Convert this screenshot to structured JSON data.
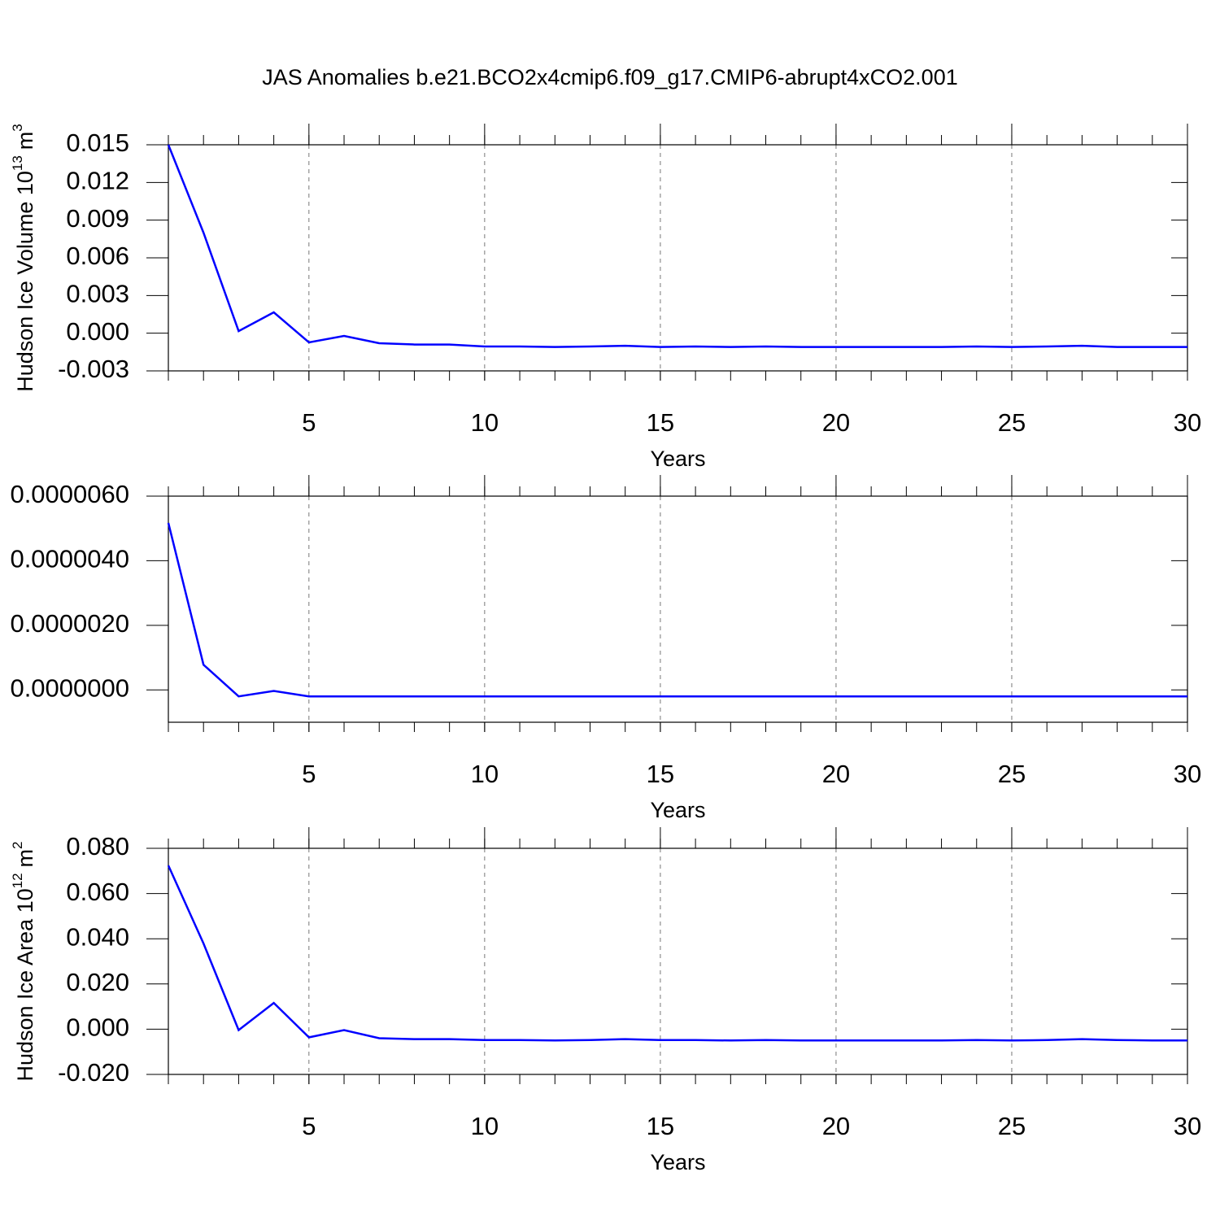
{
  "chart_data": [
    {
      "type": "line",
      "title": "JAS Anomalies b.e21.BCO2x4cmip6.f09_g17.CMIP6-abrupt4xCO2.001",
      "ylabel": "Hudson Ice Volume 10",
      "ylabel_exponent": "13",
      "ylabel_unit": "m",
      "ylabel_unit_exponent": "3",
      "xlabel": "Years",
      "x": [
        1,
        2,
        3,
        4,
        5,
        6,
        7,
        8,
        9,
        10,
        11,
        12,
        13,
        14,
        15,
        16,
        17,
        18,
        19,
        20,
        21,
        22,
        23,
        24,
        25,
        26,
        27,
        28,
        29,
        30
      ],
      "series": [
        {
          "color": "#0000ff",
          "values": [
            0.015,
            0.008,
            0.00017,
            0.00166,
            -0.00073,
            -0.00022,
            -0.0008,
            -0.0009,
            -0.0009,
            -0.00106,
            -0.00106,
            -0.0011,
            -0.00106,
            -0.001,
            -0.0011,
            -0.00106,
            -0.0011,
            -0.00106,
            -0.0011,
            -0.0011,
            -0.0011,
            -0.0011,
            -0.0011,
            -0.00106,
            -0.0011,
            -0.00106,
            -0.001,
            -0.0011,
            -0.0011,
            -0.0011
          ]
        }
      ],
      "xlim": [
        1,
        30
      ],
      "xticks": [
        5,
        10,
        15,
        20,
        25,
        30
      ],
      "ylim": [
        -0.003,
        0.015
      ],
      "yticks": [
        {
          "value": -0.003,
          "label": "-0.003"
        },
        {
          "value": 0,
          "label": "0.000"
        },
        0.003,
        0.006,
        0.009,
        0.012,
        0.015
      ],
      "xgrid": true
    },
    {
      "type": "line",
      "xlabel": "Years",
      "x": [
        1,
        2,
        3,
        4,
        5,
        6,
        7,
        8,
        9,
        10,
        11,
        12,
        13,
        14,
        15,
        16,
        17,
        18,
        19,
        20,
        21,
        22,
        23,
        24,
        25,
        26,
        27,
        28,
        29,
        30
      ],
      "series": [
        {
          "color": "#0000ff",
          "values": [
            5.17e-06,
            7.8e-07,
            -2e-07,
            -3e-08,
            -2e-07,
            -2e-07,
            -2e-07,
            -2e-07,
            -2e-07,
            -2e-07,
            -2e-07,
            -2e-07,
            -2e-07,
            -2e-07,
            -2e-07,
            -2e-07,
            -2e-07,
            -2e-07,
            -2e-07,
            -2e-07,
            -2e-07,
            -2e-07,
            -2e-07,
            -2e-07,
            -2e-07,
            -2e-07,
            -2e-07,
            -2e-07,
            -2e-07,
            -2e-07
          ]
        }
      ],
      "xlim": [
        1,
        30
      ],
      "xticks": [
        5,
        10,
        15,
        20,
        25,
        30
      ],
      "ylim": [
        -1e-06,
        6e-06
      ],
      "yticks": [
        {
          "value": 0,
          "label": "0.0000000"
        },
        {
          "value": 2e-06,
          "label": "0.0000020"
        },
        {
          "value": 4e-06,
          "label": "0.0000040"
        },
        {
          "value": 6e-06,
          "label": "0.0000060"
        }
      ],
      "xgrid": true
    },
    {
      "type": "line",
      "ylabel": "Hudson Ice Area 10",
      "ylabel_exponent": "12",
      "ylabel_unit": "m",
      "ylabel_unit_exponent": "2",
      "xlabel": "Years",
      "x": [
        1,
        2,
        3,
        4,
        5,
        6,
        7,
        8,
        9,
        10,
        11,
        12,
        13,
        14,
        15,
        16,
        17,
        18,
        19,
        20,
        21,
        22,
        23,
        24,
        25,
        26,
        27,
        28,
        29,
        30
      ],
      "series": [
        {
          "color": "#0000ff",
          "values": [
            0.0724,
            0.0379,
            -0.0004,
            0.0116,
            -0.0036,
            -0.0004,
            -0.004,
            -0.0044,
            -0.0044,
            -0.0048,
            -0.0048,
            -0.005,
            -0.0048,
            -0.0044,
            -0.0048,
            -0.0048,
            -0.005,
            -0.0048,
            -0.005,
            -0.005,
            -0.005,
            -0.005,
            -0.005,
            -0.0048,
            -0.005,
            -0.0048,
            -0.0044,
            -0.0048,
            -0.005,
            -0.005
          ]
        }
      ],
      "xlim": [
        1,
        30
      ],
      "xticks": [
        5,
        10,
        15,
        20,
        25,
        30
      ],
      "ylim": [
        -0.02,
        0.08
      ],
      "yticks": [
        {
          "value": -0.02,
          "label": "-0.020"
        },
        {
          "value": 0,
          "label": "0.000"
        },
        {
          "value": 0.02,
          "label": "0.020"
        },
        {
          "value": 0.04,
          "label": "0.040"
        },
        {
          "value": 0.06,
          "label": "0.060"
        },
        {
          "value": 0.08,
          "label": "0.080"
        }
      ],
      "xgrid": true
    }
  ]
}
